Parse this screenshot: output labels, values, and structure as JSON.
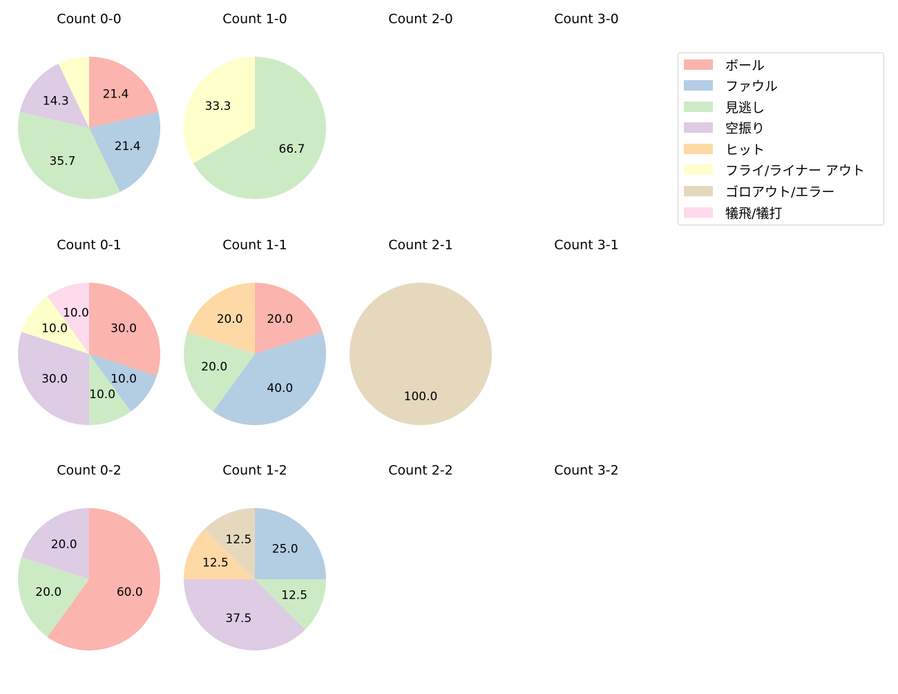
{
  "categories": [
    "ボール",
    "ファウル",
    "見逃し",
    "空振り",
    "ヒット",
    "フライ/ライナー アウト",
    "ゴロアウト/エラー",
    "犠飛/犠打"
  ],
  "colors": [
    "#fbb4ae",
    "#b3cde3",
    "#ccebc5",
    "#decbe4",
    "#fed9a6",
    "#ffffcc",
    "#e5d8bd",
    "#fddaec"
  ],
  "legend": {
    "items": [
      {
        "label": "ボール",
        "color": "#fbb4ae"
      },
      {
        "label": "ファウル",
        "color": "#b3cde3"
      },
      {
        "label": "見逃し",
        "color": "#ccebc5"
      },
      {
        "label": "空振り",
        "color": "#decbe4"
      },
      {
        "label": "ヒット",
        "color": "#fed9a6"
      },
      {
        "label": "フライ/ライナー アウト",
        "color": "#ffffcc"
      },
      {
        "label": "ゴロアウト/エラー",
        "color": "#e5d8bd"
      },
      {
        "label": "犠飛/犠打",
        "color": "#fddaec"
      }
    ]
  },
  "chart_data": [
    {
      "type": "pie",
      "title": "Count 0-0",
      "labels": [
        "ボール",
        "ファウル",
        "見逃し",
        "空振り",
        "フライ/ライナー アウト"
      ],
      "values": [
        21.4,
        21.4,
        35.7,
        14.3,
        7.1
      ],
      "shown_labels": [
        "21.4",
        "21.4",
        "35.7",
        "14.3",
        ""
      ]
    },
    {
      "type": "pie",
      "title": "Count 1-0",
      "labels": [
        "見逃し",
        "フライ/ライナー アウト"
      ],
      "values": [
        66.7,
        33.3
      ],
      "shown_labels": [
        "66.7",
        "33.3"
      ]
    },
    {
      "type": "pie",
      "title": "Count 2-0",
      "labels": [],
      "values": [],
      "shown_labels": []
    },
    {
      "type": "pie",
      "title": "Count 3-0",
      "labels": [],
      "values": [],
      "shown_labels": []
    },
    {
      "type": "pie",
      "title": "Count 0-1",
      "labels": [
        "ボール",
        "ファウル",
        "見逃し",
        "空振り",
        "フライ/ライナー アウト",
        "犠飛/犠打"
      ],
      "values": [
        30.0,
        10.0,
        10.0,
        30.0,
        10.0,
        10.0
      ],
      "shown_labels": [
        "30.0",
        "10.0",
        "10.0",
        "30.0",
        "10.0",
        "10.0"
      ]
    },
    {
      "type": "pie",
      "title": "Count 1-1",
      "labels": [
        "ボール",
        "ファウル",
        "見逃し",
        "ヒット"
      ],
      "values": [
        20.0,
        40.0,
        20.0,
        20.0
      ],
      "shown_labels": [
        "20.0",
        "40.0",
        "20.0",
        "20.0"
      ]
    },
    {
      "type": "pie",
      "title": "Count 2-1",
      "labels": [
        "ゴロアウト/エラー"
      ],
      "values": [
        100.0
      ],
      "shown_labels": [
        "100.0"
      ]
    },
    {
      "type": "pie",
      "title": "Count 3-1",
      "labels": [],
      "values": [],
      "shown_labels": []
    },
    {
      "type": "pie",
      "title": "Count 0-2",
      "labels": [
        "ボール",
        "見逃し",
        "空振り"
      ],
      "values": [
        60.0,
        20.0,
        20.0
      ],
      "shown_labels": [
        "60.0",
        "20.0",
        "20.0"
      ]
    },
    {
      "type": "pie",
      "title": "Count 1-2",
      "labels": [
        "ファウル",
        "見逃し",
        "空振り",
        "ヒット",
        "ゴロアウト/エラー"
      ],
      "values": [
        25.0,
        12.5,
        37.5,
        12.5,
        12.5
      ],
      "shown_labels": [
        "25.0",
        "12.5",
        "37.5",
        "12.5",
        "12.5"
      ]
    },
    {
      "type": "pie",
      "title": "Count 2-2",
      "labels": [],
      "values": [],
      "shown_labels": []
    },
    {
      "type": "pie",
      "title": "Count 3-2",
      "labels": [],
      "values": [],
      "shown_labels": []
    }
  ]
}
